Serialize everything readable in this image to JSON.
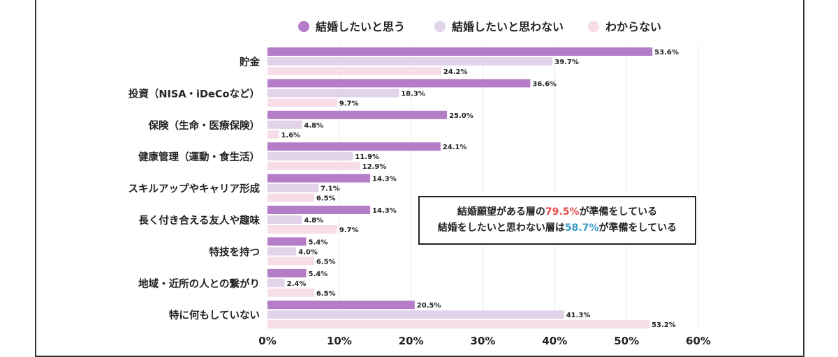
{
  "chart_data": {
    "type": "bar",
    "orientation": "horizontal",
    "categories": [
      "貯金",
      "投資（NISA・iDeCoなど）",
      "保険（生命・医療保険）",
      "健康管理（運動・食生活）",
      "スキルアップやキャリア形成",
      "長く付き合える友人や趣味",
      "特技を持つ",
      "地域・近所の人との繋がり",
      "特に何もしていない"
    ],
    "series": [
      {
        "name": "結婚したいと思う",
        "color": "#b57cc8",
        "values": [
          53.6,
          36.6,
          25.0,
          24.1,
          14.3,
          14.3,
          5.4,
          5.4,
          20.5
        ]
      },
      {
        "name": "結婚したいと思わない",
        "color": "#e2d2ea",
        "values": [
          39.7,
          18.3,
          4.8,
          11.9,
          7.1,
          4.8,
          4.0,
          2.4,
          41.3
        ]
      },
      {
        "name": "わからない",
        "color": "#f6dde8",
        "values": [
          24.2,
          9.7,
          1.6,
          12.9,
          6.5,
          9.7,
          6.5,
          6.5,
          53.2
        ]
      }
    ],
    "xlim": [
      0,
      60
    ],
    "xticks": [
      "0%",
      "10%",
      "20%",
      "30%",
      "40%",
      "50%",
      "60%"
    ],
    "grid": true,
    "legend_position": "top",
    "annotation": {
      "line1_pre": "結婚願望がある層の",
      "line1_value": "79.5%",
      "line1_post": "が準備をしている",
      "line2_pre": "結婚をしたいと思わない層は",
      "line2_value": "58.7%",
      "line2_post": "が準備をしている",
      "value1_color": "#e84a4a",
      "value2_color": "#3a9cc8"
    }
  }
}
